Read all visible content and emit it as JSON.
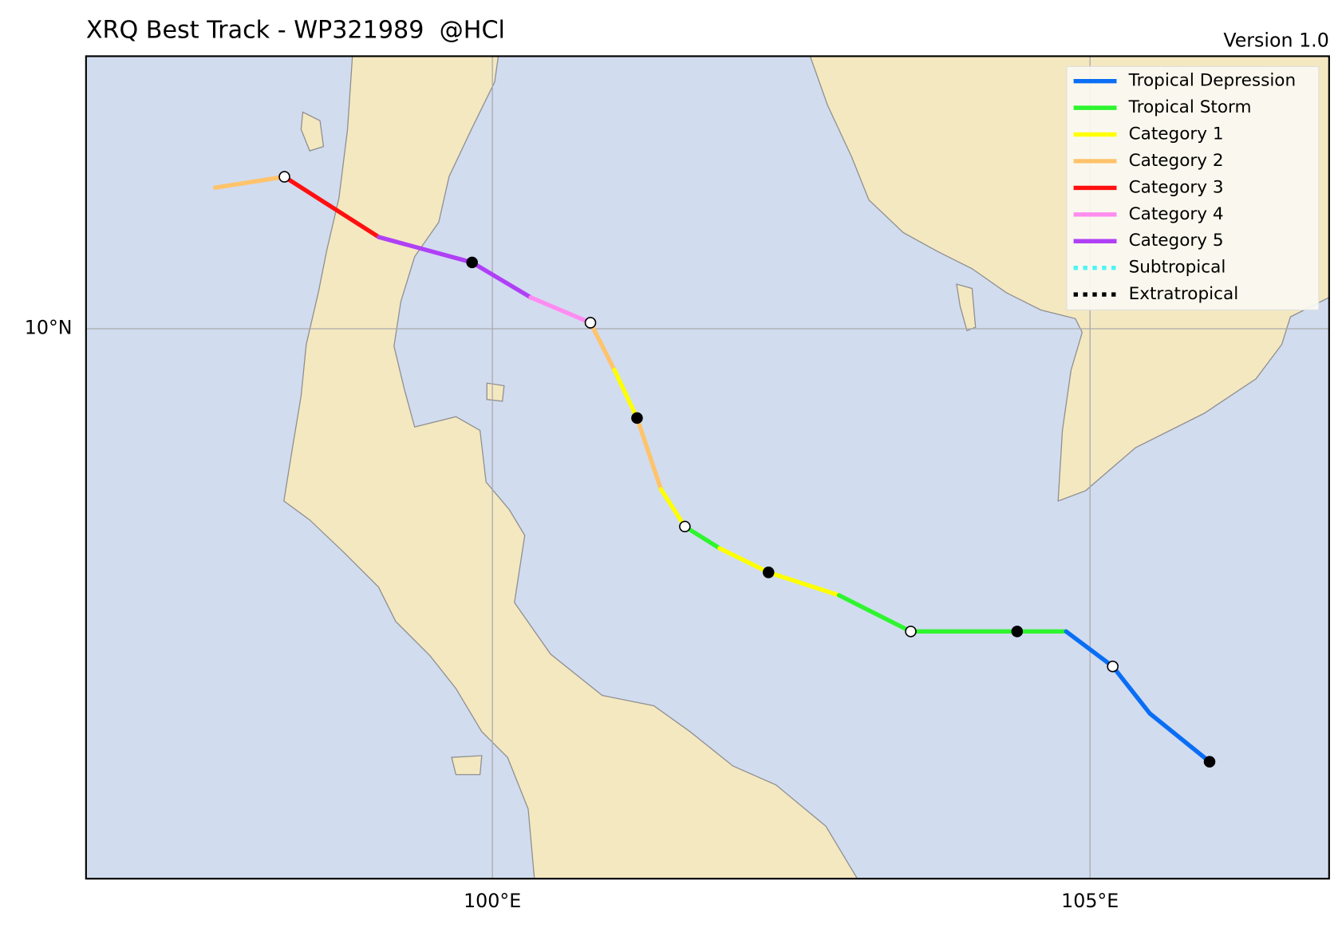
{
  "header": {
    "title": "XRQ Best Track - WP321989  @HCl",
    "version": "Version 1.0"
  },
  "map": {
    "xlim": [
      96.6,
      107.0
    ],
    "ylim": [
      5.44,
      12.26
    ],
    "xticks": [
      {
        "value": 100,
        "label": "100°E"
      },
      {
        "value": 105,
        "label": "105°E"
      }
    ],
    "yticks": [
      {
        "value": 10,
        "label": "10°N"
      }
    ],
    "grid": true
  },
  "legend": {
    "entries": [
      {
        "name": "Tropical Depression",
        "color": "#0a6ef5",
        "style": "solid"
      },
      {
        "name": "Tropical Storm",
        "color": "#2ef52e",
        "style": "solid"
      },
      {
        "name": "Category 1",
        "color": "#ffff00",
        "style": "solid"
      },
      {
        "name": "Category 2",
        "color": "#ffc36b",
        "style": "solid"
      },
      {
        "name": "Category 3",
        "color": "#ff1010",
        "style": "solid"
      },
      {
        "name": "Category 4",
        "color": "#ff8cf0",
        "style": "solid"
      },
      {
        "name": "Category 5",
        "color": "#b040f5",
        "style": "solid"
      },
      {
        "name": "Subtropical",
        "color": "#4cf5f5",
        "style": "dotted"
      },
      {
        "name": "Extratropical",
        "color": "#000000",
        "style": "dotted"
      }
    ]
  },
  "track": [
    {
      "lon": 97.68,
      "lat": 11.17,
      "category": 3,
      "marker": null
    },
    {
      "lon": 98.26,
      "lat": 11.26,
      "category": 4,
      "marker": "open"
    },
    {
      "lon": 99.05,
      "lat": 10.76,
      "category": 6,
      "marker": null
    },
    {
      "lon": 99.83,
      "lat": 10.55,
      "category": 6,
      "marker": "filled"
    },
    {
      "lon": 100.32,
      "lat": 10.26,
      "category": 5,
      "marker": null
    },
    {
      "lon": 100.82,
      "lat": 10.05,
      "category": 3,
      "marker": "open"
    },
    {
      "lon": 101.02,
      "lat": 9.66,
      "category": 2,
      "marker": null
    },
    {
      "lon": 101.21,
      "lat": 9.26,
      "category": 3,
      "marker": "filled"
    },
    {
      "lon": 101.41,
      "lat": 8.67,
      "category": 2,
      "marker": null
    },
    {
      "lon": 101.61,
      "lat": 8.36,
      "category": 1,
      "marker": "open"
    },
    {
      "lon": 101.9,
      "lat": 8.18,
      "category": 2,
      "marker": null
    },
    {
      "lon": 102.31,
      "lat": 7.98,
      "category": 2,
      "marker": "filled"
    },
    {
      "lon": 102.9,
      "lat": 7.79,
      "category": 1,
      "marker": null
    },
    {
      "lon": 103.5,
      "lat": 7.49,
      "category": 1,
      "marker": "open"
    },
    {
      "lon": 104.39,
      "lat": 7.49,
      "category": 1,
      "marker": "filled"
    },
    {
      "lon": 104.8,
      "lat": 7.49,
      "category": 0,
      "marker": null
    },
    {
      "lon": 105.19,
      "lat": 7.2,
      "category": 0,
      "marker": "open"
    },
    {
      "lon": 105.5,
      "lat": 6.81,
      "category": 0,
      "marker": null
    },
    {
      "lon": 106.0,
      "lat": 6.41,
      "category": null,
      "marker": "filled"
    }
  ]
}
